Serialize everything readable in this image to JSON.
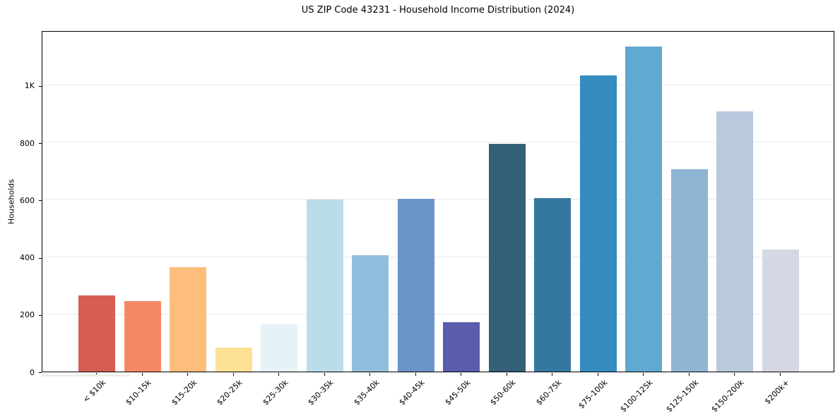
{
  "chart_data": {
    "type": "bar",
    "title": "US ZIP Code 43231 - Household Income Distribution (2024)",
    "xlabel": "",
    "ylabel": "Households",
    "categories": [
      "< $10k",
      "$10-15k",
      "$15-20k",
      "$20-25k",
      "$25-30k",
      "$30-35k",
      "$35-40k",
      "$40-45k",
      "$45-50k",
      "$50-60k",
      "$60-75k",
      "$75-100k",
      "$100-125k",
      "$125-150k",
      "$150-200k",
      "$200k+"
    ],
    "values": [
      266,
      247,
      365,
      85,
      165,
      600,
      407,
      604,
      172,
      795,
      606,
      1035,
      1135,
      708,
      910,
      425
    ],
    "bar_colors": [
      "#d65d54",
      "#f58967",
      "#fcbd7d",
      "#fde295",
      "#e6f2f7",
      "#bbdcea",
      "#91bedd",
      "#6b94c8",
      "#5a5dac",
      "#36607a",
      "#35789f",
      "#348cbf",
      "#60a9d0",
      "#8fb4d4",
      "#b9c9de",
      "#d5d8e4"
    ],
    "ylim": [
      0,
      1192
    ],
    "yticks": [
      0,
      200,
      400,
      600,
      800,
      1000
    ],
    "ytick_labels": [
      "0",
      "200",
      "400",
      "600",
      "800",
      "1K"
    ],
    "grid": "horizontal",
    "gridline_color": "#e9e9ec",
    "axis_color": "#000000",
    "legend": "none"
  }
}
